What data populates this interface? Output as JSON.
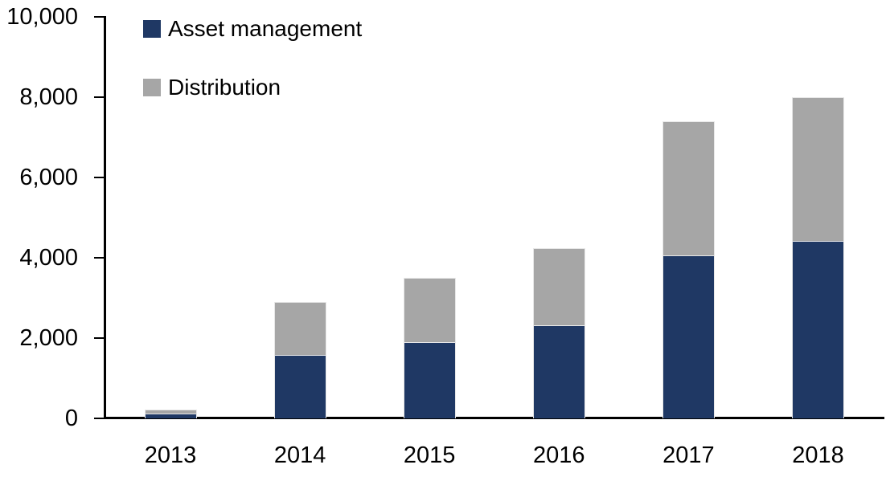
{
  "chart_data": {
    "type": "bar",
    "stacked": true,
    "title": "",
    "xlabel": "",
    "ylabel": "",
    "categories": [
      "2013",
      "2014",
      "2015",
      "2016",
      "2017",
      "2018"
    ],
    "series": [
      {
        "name": "Asset management",
        "color": "#1F3864",
        "values": [
          120,
          1580,
          1910,
          2330,
          4060,
          4430
        ]
      },
      {
        "name": "Distribution",
        "color": "#A6A6A6",
        "values": [
          110,
          1320,
          1590,
          1920,
          3340,
          3570
        ]
      }
    ],
    "ylim": [
      0,
      10000
    ],
    "ytick_step": 2000,
    "ytick_labels": [
      "0",
      "2,000",
      "4,000",
      "6,000",
      "8,000",
      "10,000"
    ],
    "grid": false,
    "legend_position": "top-left",
    "axis_color": "#000000",
    "text_color": "#000000",
    "background_color": "#FFFFFF"
  }
}
